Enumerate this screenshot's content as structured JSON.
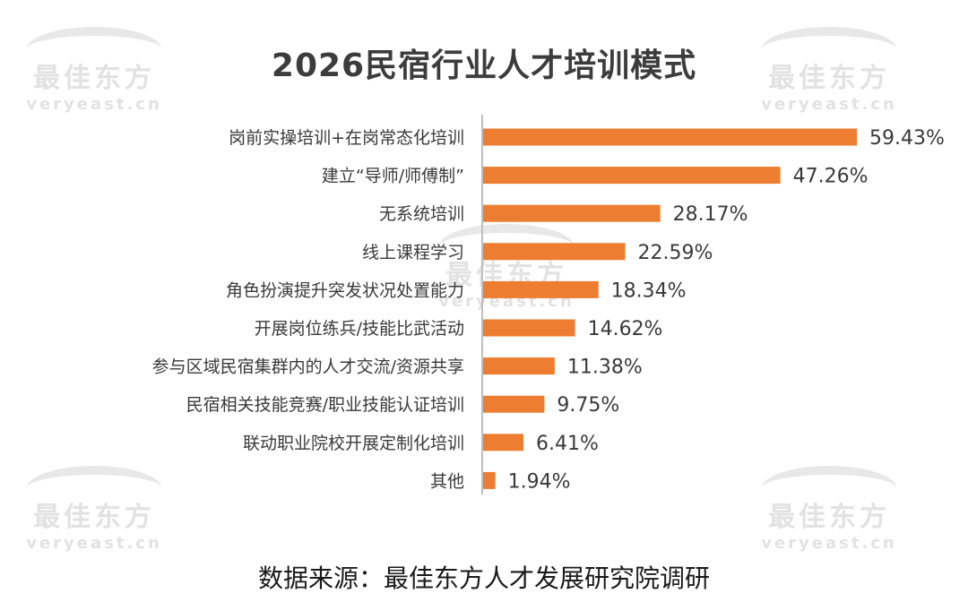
{
  "chart_data": {
    "type": "bar",
    "orientation": "horizontal",
    "title": "2026民宿行业人才培训模式",
    "categories": [
      "岗前实操培训+在岗常态化培训",
      "建立“导师/师傅制”",
      "无系统培训",
      "线上课程学习",
      "角色扮演提升突发状况处置能力",
      "开展岗位练兵/技能比武活动",
      "参与区域民宿集群内的人才交流/资源共享",
      "民宿相关技能竞赛/职业技能认证培训",
      "联动职业院校开展定制化培训",
      "其他"
    ],
    "values": [
      59.43,
      47.26,
      28.17,
      22.59,
      18.34,
      14.62,
      11.38,
      9.75,
      6.41,
      1.94
    ],
    "value_labels": [
      "59.43%",
      "47.26%",
      "28.17%",
      "22.59%",
      "18.34%",
      "14.62%",
      "11.38%",
      "9.75%",
      "6.41%",
      "1.94%"
    ],
    "xlim": [
      0,
      60
    ],
    "grid": false,
    "bar_color": "#ed7d31",
    "axis_color": "#bfbfbf"
  },
  "source": "数据来源：最佳东方人才发展研究院调研",
  "watermark": {
    "main": "最佳东方",
    "sub": "veryeast.cn"
  }
}
